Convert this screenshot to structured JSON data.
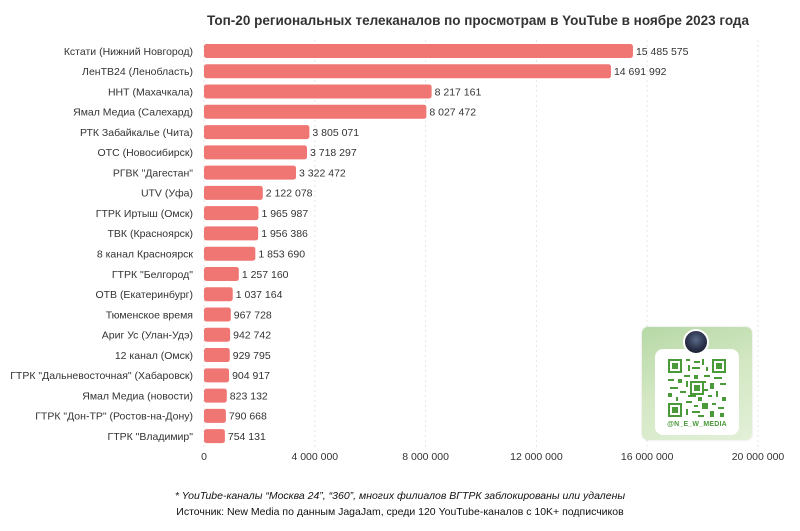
{
  "chart_data": {
    "type": "bar",
    "orientation": "horizontal",
    "title": "Топ-20 региональных телеканалов по просмотрам в YouTube в ноябре 2023 года",
    "xlabel": "",
    "ylabel": "",
    "xlim": [
      0,
      20000000
    ],
    "ticks": [
      0,
      4000000,
      8000000,
      12000000,
      16000000,
      20000000
    ],
    "tick_labels": [
      "0",
      "4 000 000",
      "8 000 000",
      "12 000 000",
      "16 000 000",
      "20 000 000"
    ],
    "bar_color": "#f07673",
    "grid": true,
    "categories": [
      "Кстати (Нижний Новгород)",
      "ЛенТВ24 (Ленобласть)",
      "ННТ (Махачкала)",
      "Ямал Медиа (Салехард)",
      "РТК Забайкалье (Чита)",
      "ОТС (Новосибирск)",
      "РГВК \"Дагестан\"",
      "UTV (Уфа)",
      "ГТРК Иртыш (Омск)",
      "ТВК (Красноярск)",
      "8 канал Красноярск",
      "ГТРК \"Белгород\"",
      "ОТВ (Екатеринбург)",
      "Тюменское время",
      "Ариг Ус (Улан-Удэ)",
      "12 канал (Омск)",
      "ГТРК \"Дальневосточная\" (Хабаровск)",
      "Ямал Медиа (новости)",
      "ГТРК \"Дон-ТР\" (Ростов-на-Дону)",
      "ГТРК \"Владимир\""
    ],
    "values": [
      15485575,
      14691992,
      8217161,
      8027472,
      3805071,
      3718297,
      3322472,
      2122078,
      1965987,
      1956386,
      1853690,
      1257160,
      1037164,
      967728,
      942742,
      929795,
      904917,
      823132,
      790668,
      754131
    ],
    "value_labels": [
      "15 485 575",
      "14 691 992",
      "8 217 161",
      "8 027 472",
      "3 805 071",
      "3 718 297",
      "3 322 472",
      "2 122 078",
      "1 965 987",
      "1 956 386",
      "1 853 690",
      "1 257 160",
      "1 037 164",
      "967 728",
      "942 742",
      "929 795",
      "904 917",
      "823 132",
      "790 668",
      "754 131"
    ]
  },
  "footnote": {
    "note": "* YouTube-каналы “Москва 24”, “360”, многих филиалов ВГТРК заблокированы или удалены",
    "source": "Источник: New Media по данным JagaJam, среди 120 YouTube-каналов с 10K+ подписчиков"
  },
  "qr_card": {
    "handle": "@N_E_W_MEDIA",
    "avatar_icon": "avatar-logo",
    "code_icon": "qr-code-icon",
    "accent": "#4b9a3a"
  }
}
